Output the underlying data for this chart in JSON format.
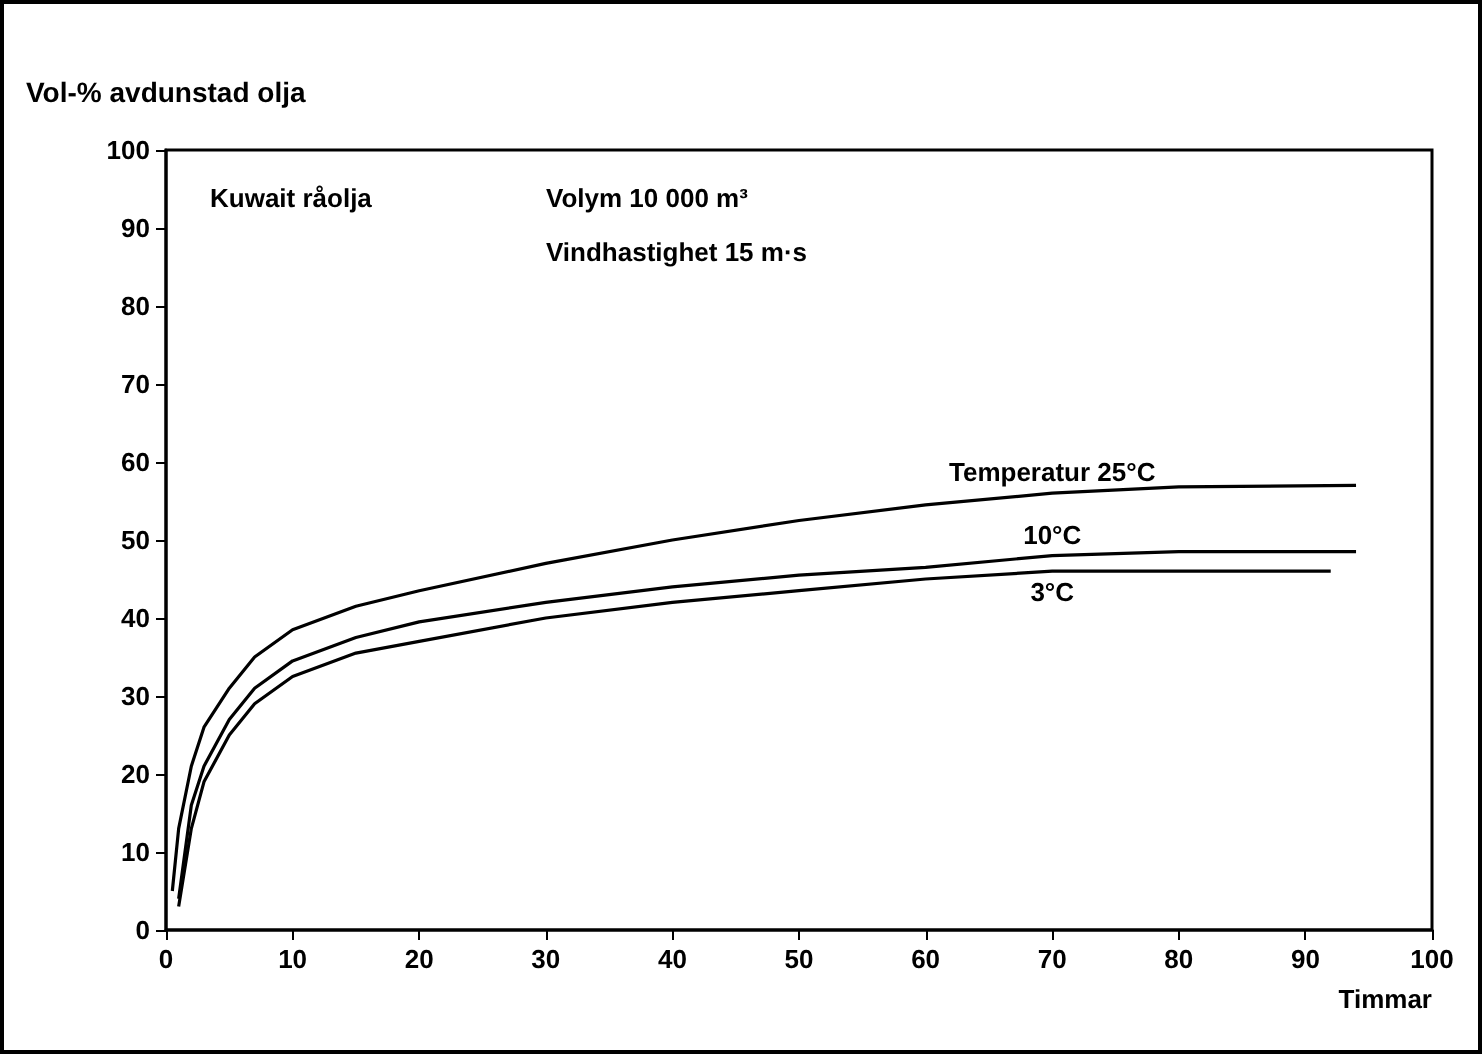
{
  "chart_data": {
    "type": "line",
    "ylabel": "Vol-% avdunstad olja",
    "xlabel": "Timmar",
    "xlim": [
      0,
      100
    ],
    "xticks": [
      0,
      10,
      20,
      30,
      40,
      50,
      60,
      70,
      80,
      90,
      100
    ],
    "ylim": [
      0,
      100
    ],
    "yticks": [
      0,
      10,
      20,
      30,
      40,
      50,
      60,
      70,
      80,
      90,
      100
    ],
    "grid": false,
    "marker": "none",
    "line_style": "solid",
    "series": [
      {
        "name": "Temperatur 25°C",
        "color": "#000000",
        "x": [
          0.5,
          1,
          2,
          3,
          5,
          7,
          10,
          15,
          20,
          30,
          40,
          50,
          60,
          70,
          80,
          94
        ],
        "values": [
          5,
          13,
          21,
          26,
          31,
          35,
          38.5,
          41.5,
          43.5,
          47,
          50,
          52.5,
          54.5,
          56,
          56.8,
          57
        ]
      },
      {
        "name": "10°C",
        "color": "#000000",
        "x": [
          1,
          2,
          3,
          5,
          7,
          10,
          15,
          20,
          30,
          40,
          50,
          60,
          70,
          80,
          94
        ],
        "values": [
          4,
          16,
          21,
          27,
          31,
          34.5,
          37.5,
          39.5,
          42,
          44,
          45.5,
          46.5,
          48,
          48.5,
          48.5
        ]
      },
      {
        "name": "3°C",
        "color": "#000000",
        "x": [
          1,
          2,
          3,
          5,
          7,
          10,
          15,
          20,
          30,
          40,
          50,
          60,
          70,
          80,
          92
        ],
        "values": [
          3,
          13,
          19,
          25,
          29,
          32.5,
          35.5,
          37,
          40,
          42,
          43.5,
          45,
          46,
          46,
          46
        ]
      }
    ],
    "annotations": [
      "Kuwait råolja",
      "Volym 10 000 m³",
      "Vindhastighet 15 m·s"
    ]
  }
}
